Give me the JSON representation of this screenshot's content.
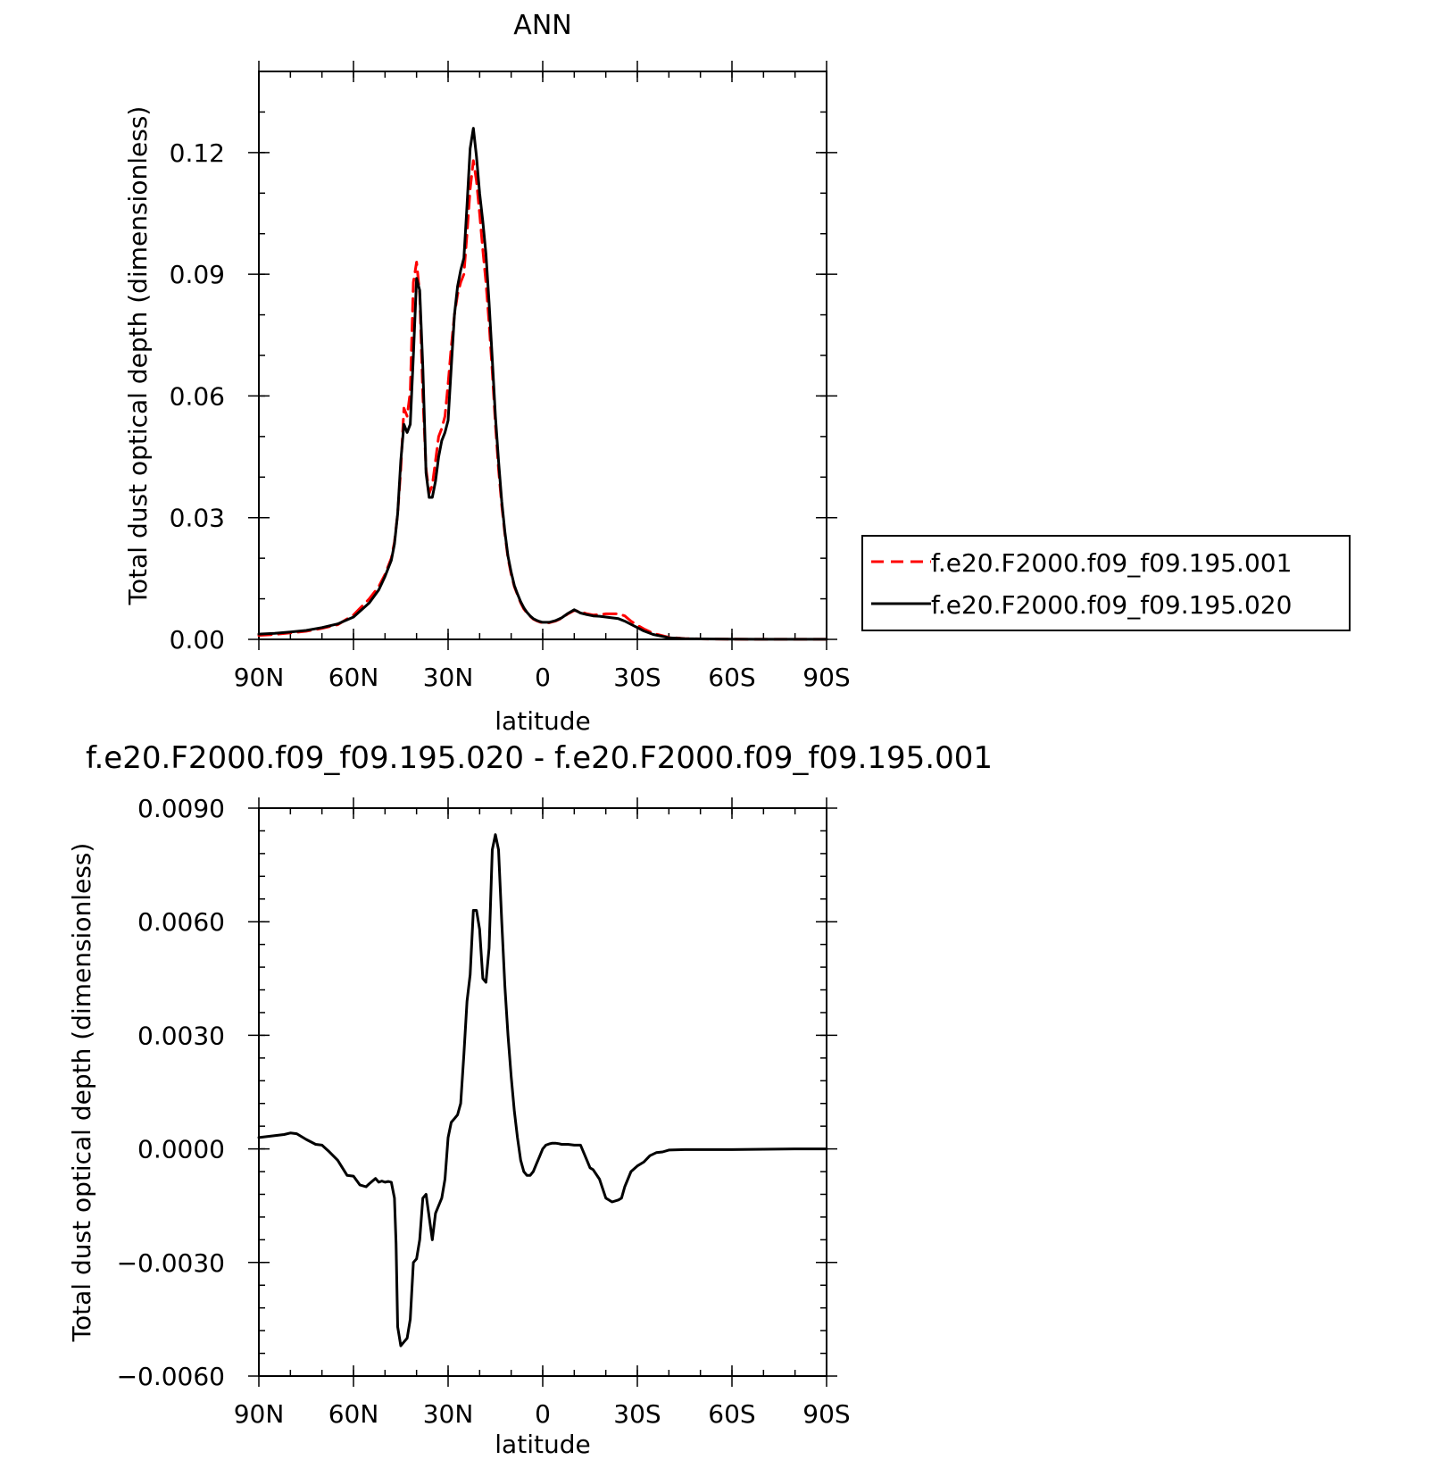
{
  "chart_data": [
    {
      "type": "line",
      "title": "ANN",
      "xlabel": "latitude",
      "ylabel": "Total dust optical depth (dimensionless)",
      "xlim": [
        90,
        -90
      ],
      "ylim": [
        0,
        0.14
      ],
      "x_ticks": [
        90,
        60,
        30,
        0,
        -30,
        -60,
        -90
      ],
      "x_tick_labels": [
        "90N",
        "60N",
        "30N",
        "0",
        "30S",
        "60S",
        "90S"
      ],
      "y_ticks": [
        0,
        0.03,
        0.06,
        0.09,
        0.12
      ],
      "y_tick_labels": [
        "0.00",
        "0.03",
        "0.06",
        "0.09",
        "0.12"
      ],
      "legend_position": "right",
      "series": [
        {
          "name": "f.e20.F2000.f09_f09.195.001",
          "color": "#ff0000",
          "dash": "dashed",
          "x": [
            90,
            85,
            80,
            75,
            70,
            65,
            60,
            55,
            52,
            50,
            48,
            47,
            46,
            45,
            44,
            43,
            42,
            41,
            40,
            39,
            38,
            37,
            36,
            35,
            34,
            33,
            32,
            31,
            30,
            29,
            28,
            27,
            26,
            25,
            24,
            23,
            22,
            21,
            20,
            19,
            18,
            17,
            16,
            15,
            14,
            13,
            12,
            11,
            10,
            9,
            8,
            7,
            6,
            5,
            4,
            3,
            2,
            1,
            0,
            -2,
            -4,
            -6,
            -8,
            -10,
            -12,
            -14,
            -16,
            -18,
            -20,
            -22,
            -24,
            -26,
            -28,
            -30,
            -32,
            -35,
            -40,
            -45,
            -50,
            -60,
            -70,
            -80,
            -90
          ],
          "y": [
            0.001,
            0.0012,
            0.0016,
            0.002,
            0.0027,
            0.0036,
            0.006,
            0.01,
            0.013,
            0.016,
            0.02,
            0.024,
            0.031,
            0.042,
            0.057,
            0.055,
            0.061,
            0.088,
            0.093,
            0.085,
            0.06,
            0.042,
            0.036,
            0.038,
            0.044,
            0.05,
            0.052,
            0.055,
            0.063,
            0.072,
            0.08,
            0.085,
            0.088,
            0.09,
            0.1,
            0.111,
            0.118,
            0.113,
            0.105,
            0.096,
            0.088,
            0.078,
            0.066,
            0.053,
            0.042,
            0.033,
            0.026,
            0.02,
            0.016,
            0.013,
            0.011,
            0.009,
            0.0075,
            0.0065,
            0.0057,
            0.005,
            0.0046,
            0.0043,
            0.0041,
            0.0041,
            0.0045,
            0.0052,
            0.0063,
            0.0071,
            0.0068,
            0.0063,
            0.006,
            0.0061,
            0.0063,
            0.0063,
            0.0063,
            0.0058,
            0.0045,
            0.0035,
            0.0026,
            0.0015,
            0.0005,
            0.0002,
            0.0001,
            5e-05,
            3e-05,
            2e-05,
            2e-05
          ]
        },
        {
          "name": "f.e20.F2000.f09_f09.195.020",
          "color": "#000000",
          "dash": "solid",
          "x": [
            90,
            85,
            80,
            75,
            70,
            65,
            60,
            55,
            52,
            50,
            48,
            47,
            46,
            45,
            44,
            43,
            42,
            41,
            40,
            39,
            38,
            37,
            36,
            35,
            34,
            33,
            32,
            31,
            30,
            29,
            28,
            27,
            26,
            25,
            24,
            23,
            22,
            21,
            20,
            19,
            18,
            17,
            16,
            15,
            14,
            13,
            12,
            11,
            10,
            9,
            8,
            7,
            6,
            5,
            4,
            3,
            2,
            1,
            0,
            -2,
            -4,
            -6,
            -8,
            -10,
            -12,
            -14,
            -16,
            -18,
            -20,
            -22,
            -24,
            -26,
            -28,
            -30,
            -32,
            -35,
            -40,
            -45,
            -50,
            -60,
            -70,
            -80,
            -90
          ],
          "y": [
            0.0013,
            0.0015,
            0.0018,
            0.0022,
            0.0029,
            0.0038,
            0.0055,
            0.009,
            0.0122,
            0.0155,
            0.0195,
            0.0235,
            0.031,
            0.044,
            0.053,
            0.051,
            0.053,
            0.07,
            0.089,
            0.086,
            0.067,
            0.041,
            0.035,
            0.035,
            0.039,
            0.045,
            0.049,
            0.051,
            0.054,
            0.067,
            0.08,
            0.087,
            0.091,
            0.094,
            0.107,
            0.121,
            0.126,
            0.119,
            0.11,
            0.103,
            0.095,
            0.083,
            0.069,
            0.055,
            0.044,
            0.034,
            0.0265,
            0.0205,
            0.0165,
            0.0133,
            0.0112,
            0.0093,
            0.0078,
            0.0067,
            0.0058,
            0.0051,
            0.0047,
            0.0044,
            0.0042,
            0.0042,
            0.0046,
            0.0053,
            0.0064,
            0.0073,
            0.0065,
            0.0061,
            0.0058,
            0.0057,
            0.0055,
            0.0053,
            0.0051,
            0.0045,
            0.0037,
            0.0029,
            0.0021,
            0.0012,
            0.0004,
            0.00015,
            0.0001,
            5e-05,
            3e-05,
            2e-05,
            2e-05
          ]
        }
      ]
    },
    {
      "type": "line",
      "title": "f.e20.F2000.f09_f09.195.020 - f.e20.F2000.f09_f09.195.001",
      "xlabel": "latitude",
      "ylabel": "Total dust optical depth (dimensionless)",
      "xlim": [
        90,
        -90
      ],
      "ylim": [
        -0.006,
        0.009
      ],
      "x_ticks": [
        90,
        60,
        30,
        0,
        -30,
        -60,
        -90
      ],
      "x_tick_labels": [
        "90N",
        "60N",
        "30N",
        "0",
        "30S",
        "60S",
        "90S"
      ],
      "y_ticks": [
        -0.006,
        -0.003,
        0,
        0.003,
        0.006,
        0.009
      ],
      "y_tick_labels": [
        "−0.0060",
        "−0.0030",
        "0.0000",
        "0.0030",
        "0.0060",
        "0.0090"
      ],
      "series": [
        {
          "color": "#000000",
          "dash": "solid",
          "x": [
            90,
            85,
            82,
            80,
            78,
            75,
            72,
            70,
            68,
            65,
            62,
            60,
            58,
            56,
            55,
            53,
            52,
            51,
            50,
            49,
            48,
            47,
            46.5,
            46,
            45,
            44,
            43,
            42,
            41,
            40,
            39,
            38,
            37,
            36,
            35,
            34,
            33,
            32,
            31,
            30,
            29,
            28,
            27,
            26,
            25,
            24,
            23,
            22,
            21,
            20,
            19,
            18,
            17,
            16,
            15,
            14,
            13,
            12,
            11,
            10,
            9,
            8,
            7,
            6,
            5,
            4,
            3,
            2,
            1,
            0,
            -1,
            -2,
            -3,
            -4,
            -5,
            -6,
            -8,
            -10,
            -12,
            -14,
            -15,
            -16,
            -18,
            -20,
            -22,
            -24,
            -25,
            -26,
            -28,
            -30,
            -32,
            -34,
            -36,
            -38,
            -40,
            -45,
            -50,
            -60,
            -70,
            -80,
            -90
          ],
          "y": [
            0.0003,
            0.00035,
            0.00038,
            0.00042,
            0.0004,
            0.00025,
            0.00012,
            0.0001,
            -5e-05,
            -0.0003,
            -0.0007,
            -0.00072,
            -0.00095,
            -0.001,
            -0.00092,
            -0.00078,
            -0.00088,
            -0.00085,
            -0.00088,
            -0.00086,
            -0.00088,
            -0.0013,
            -0.0025,
            -0.0047,
            -0.0052,
            -0.0051,
            -0.005,
            -0.0045,
            -0.003,
            -0.0029,
            -0.0024,
            -0.0013,
            -0.0012,
            -0.0018,
            -0.0024,
            -0.0017,
            -0.0015,
            -0.0013,
            -0.0008,
            0.0003,
            0.0007,
            0.0008,
            0.0009,
            0.0012,
            0.0025,
            0.0039,
            0.0046,
            0.0063,
            0.0063,
            0.0058,
            0.0045,
            0.0044,
            0.0053,
            0.0079,
            0.0083,
            0.0079,
            0.006,
            0.0043,
            0.003,
            0.0019,
            0.001,
            0.0003,
            -0.0003,
            -0.0006,
            -0.0007,
            -0.0007,
            -0.0006,
            -0.0004,
            -0.0002,
            0.0,
            0.0001,
            0.00013,
            0.00015,
            0.00015,
            0.00014,
            0.00012,
            0.00012,
            0.0001,
            0.0001,
            -0.0003,
            -0.0005,
            -0.00055,
            -0.0008,
            -0.0013,
            -0.0014,
            -0.00135,
            -0.0013,
            -0.001,
            -0.0006,
            -0.00045,
            -0.00035,
            -0.00018,
            -0.0001,
            -8e-05,
            -3e-05,
            -2e-05,
            -2e-05,
            -2e-05,
            -1e-05,
            0.0,
            0.0
          ]
        }
      ]
    }
  ]
}
